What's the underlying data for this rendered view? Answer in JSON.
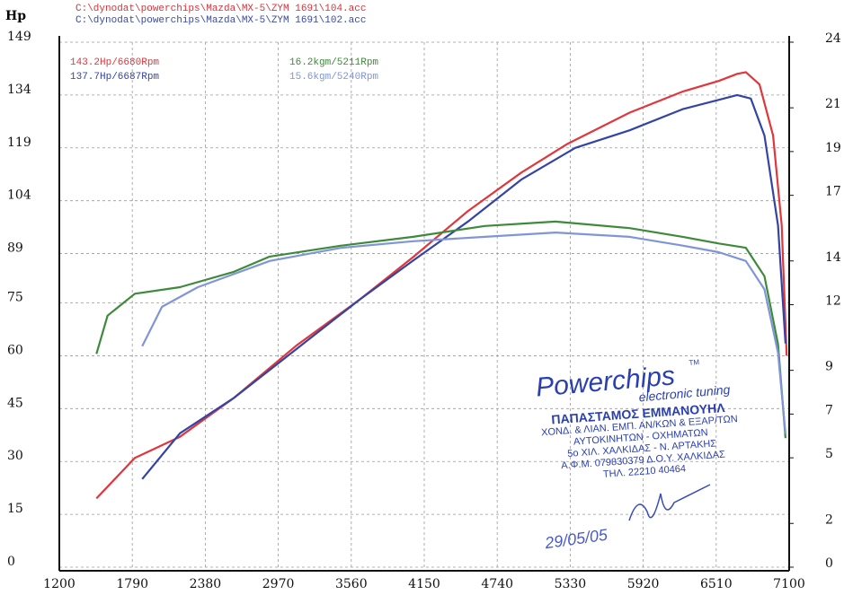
{
  "chart_data": {
    "type": "line",
    "files": [
      {
        "text": "C:\\dynodat\\powerchips\\Mazda\\MX-5\\ZYM 1691\\104.acc",
        "color": "#d9343a"
      },
      {
        "text": "C:\\dynodat\\powerchips\\Mazda\\MX-5\\ZYM 1691\\102.acc",
        "color": "#3a4aa8"
      }
    ],
    "ylabel": "Hp",
    "xlim": [
      1200,
      7100
    ],
    "xticks": [
      1200,
      1790,
      2380,
      2970,
      3560,
      4150,
      4740,
      5330,
      5920,
      6510,
      7100
    ],
    "ylim": [
      0,
      149
    ],
    "yticks": [
      0,
      15,
      30,
      45,
      60,
      75,
      89,
      104,
      119,
      134,
      149
    ],
    "y2lim": [
      0,
      24
    ],
    "y2ticks": [
      0,
      2,
      5,
      7,
      9,
      12,
      14,
      17,
      19,
      21,
      24
    ],
    "grid": true,
    "series": [
      {
        "name": "143.2Hp/6680Rpm",
        "color": "#e0363c",
        "x": [
          1500,
          1810,
          2175,
          2610,
          3120,
          3630,
          4060,
          4500,
          4935,
          5300,
          5810,
          6240,
          6530,
          6680,
          6750,
          6860,
          6970,
          7040,
          7080
        ],
        "values": [
          19.5,
          31,
          37,
          48,
          63,
          76,
          88,
          101,
          112,
          120,
          129,
          135,
          138,
          140,
          140.5,
          137,
          122.5,
          97,
          60
        ]
      },
      {
        "name": "137.7Hp/6687Rpm",
        "color": "#3444a4",
        "x": [
          1870,
          2175,
          2610,
          3120,
          3630,
          4060,
          4500,
          4935,
          5370,
          5810,
          6240,
          6680,
          6790,
          6900,
          7010,
          7070
        ],
        "values": [
          25,
          38,
          48,
          62,
          76,
          87,
          98,
          110,
          119,
          124,
          130,
          134,
          133,
          122.5,
          97,
          63.5
        ]
      },
      {
        "name": "16.2kgm/5211Rpm",
        "color": "#3d8a3a",
        "axis": "y2",
        "x": [
          1500,
          1590,
          1810,
          2175,
          2610,
          2900,
          3480,
          4060,
          4640,
          5210,
          5810,
          6240,
          6530,
          6750,
          6900,
          7010,
          7070
        ],
        "values": [
          9.75,
          11.5,
          12.5,
          12.8,
          13.5,
          14.2,
          14.7,
          15.1,
          15.6,
          15.8,
          15.5,
          15.1,
          14.8,
          14.6,
          13.3,
          10.2,
          5.9
        ]
      },
      {
        "name": "15.6kgm/5240Rpm",
        "color": "#7f95d8",
        "axis": "y2",
        "x": [
          1870,
          2030,
          2320,
          2900,
          3480,
          4060,
          4640,
          5210,
          5810,
          6240,
          6530,
          6750,
          6900,
          7010,
          7070
        ],
        "values": [
          10.1,
          11.9,
          12.8,
          14.0,
          14.6,
          14.9,
          15.1,
          15.3,
          15.1,
          14.7,
          14.4,
          14.0,
          12.7,
          9.8,
          6.1
        ]
      }
    ],
    "stamp": {
      "brand": "Powerchips",
      "tm": "TM",
      "tagline": "electronic tuning",
      "lines": [
        "ΠΑΠΑΣΤΑΜΟΣ ΕΜΜΑΝΟΥΗΛ",
        "ΧΟΝΔ. & ΛΙΑΝ. ΕΜΠ. ΑΝ/ΚΩΝ & ΕΞΑΡ/ΤΩΝ",
        "ΑΥΤΟΚΙΝΗΤΩΝ - ΟΧΗΜΑΤΩΝ",
        "5ο ΧΙΛ. ΧΑΛΚΙΔΑΣ - Ν. ΑΡΤΑΚΗΣ",
        "Α.Φ.Μ. 079830379 Δ.Ο.Υ. ΧΑΛΚΙΔΑΣ",
        "ΤΗΛ. 22210 40464"
      ],
      "date": "29/05/05"
    }
  }
}
